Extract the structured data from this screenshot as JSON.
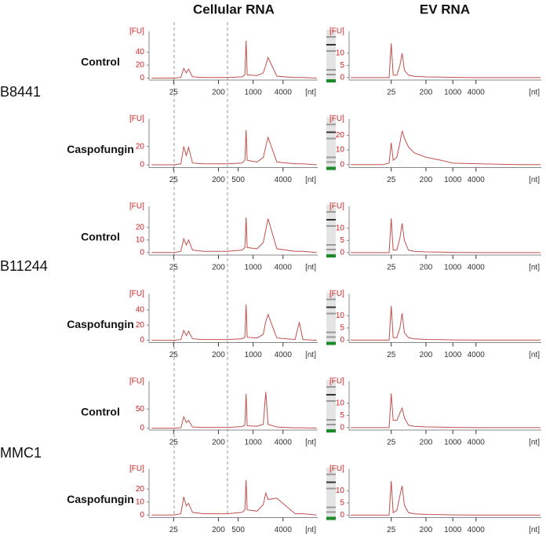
{
  "columns": [
    "Cellular RNA",
    "EV RNA"
  ],
  "strains": [
    "B8441",
    "B11244",
    "MMC1"
  ],
  "conditions": [
    "Control",
    "Caspofungin",
    "Control",
    "Caspofungin",
    "Control",
    "Caspofungin"
  ],
  "chart_data": [
    {
      "type": "line",
      "ylabel": "[FU]",
      "xlabel": "[nt]",
      "xscale": "log",
      "color": "#c0504d",
      "x": [
        9,
        25,
        35,
        40,
        45,
        50,
        60,
        100,
        300,
        600,
        680,
        720,
        760,
        1200,
        1600,
        1800,
        2000,
        3000,
        7000,
        8500,
        10000,
        19000
      ],
      "values": [
        0,
        0,
        1,
        15,
        8,
        14,
        2,
        1,
        1,
        2,
        5,
        58,
        5,
        4,
        8,
        20,
        32,
        3,
        1,
        1,
        1,
        0
      ],
      "xlim": [
        8,
        20000
      ],
      "ylim": [
        -3,
        65
      ],
      "xticks": [
        25,
        200,
        1000,
        4000
      ],
      "yticks": [
        0,
        20,
        40
      ]
    },
    {
      "type": "line",
      "ylabel": "[FU]",
      "xlabel": "[nt]",
      "xscale": "log",
      "color": "#c0504d",
      "x": [
        9,
        25,
        35,
        40,
        45,
        50,
        60,
        100,
        300,
        600,
        680,
        720,
        760,
        1200,
        1600,
        1800,
        2000,
        3000,
        7000,
        8500,
        10000,
        19000
      ],
      "values": [
        0,
        0,
        1,
        20,
        10,
        19,
        2,
        1,
        1,
        2,
        5,
        38,
        5,
        3,
        8,
        20,
        30,
        3,
        1,
        1,
        1,
        0
      ],
      "xlim": [
        8,
        20000
      ],
      "ylim": [
        -3,
        45
      ],
      "xticks": [
        25,
        200,
        500,
        4000
      ],
      "yticks": [
        0,
        20
      ]
    },
    {
      "type": "line",
      "ylabel": "[FU]",
      "xlabel": "[nt]",
      "xscale": "log",
      "color": "#c0504d",
      "x": [
        9,
        25,
        35,
        40,
        45,
        50,
        60,
        100,
        300,
        600,
        680,
        720,
        760,
        1200,
        1600,
        1800,
        2000,
        3000,
        7000,
        8500,
        10000,
        19000
      ],
      "values": [
        0,
        0,
        1,
        11,
        6,
        10,
        2,
        1,
        1,
        2,
        4,
        28,
        4,
        3,
        8,
        18,
        27,
        3,
        1,
        1,
        1,
        0
      ],
      "xlim": [
        8,
        20000
      ],
      "ylim": [
        -2,
        33
      ],
      "xticks": [
        25,
        200,
        1000,
        4000
      ],
      "yticks": [
        0,
        10,
        20
      ]
    },
    {
      "type": "line",
      "ylabel": "[FU]",
      "xlabel": "[nt]",
      "xscale": "log",
      "color": "#c0504d",
      "x": [
        9,
        25,
        35,
        40,
        45,
        50,
        60,
        100,
        300,
        600,
        680,
        720,
        760,
        1200,
        1600,
        1800,
        2000,
        3000,
        7000,
        8500,
        10000,
        19000
      ],
      "values": [
        0,
        0,
        1,
        13,
        6,
        12,
        2,
        1,
        1,
        2,
        4,
        47,
        4,
        3,
        8,
        25,
        34,
        3,
        1,
        24,
        1,
        0
      ],
      "xlim": [
        8,
        20000
      ],
      "ylim": [
        -3,
        55
      ],
      "xticks": [
        25,
        200,
        1000,
        4000
      ],
      "yticks": [
        0,
        20,
        40
      ]
    },
    {
      "type": "line",
      "ylabel": "[FU]",
      "xlabel": "[nt]",
      "xscale": "log",
      "color": "#c0504d",
      "x": [
        9,
        25,
        35,
        40,
        45,
        50,
        60,
        100,
        300,
        600,
        680,
        720,
        760,
        1200,
        1600,
        1800,
        2000,
        3000,
        7000,
        8500,
        10000,
        19000
      ],
      "values": [
        0,
        0,
        1,
        30,
        15,
        20,
        3,
        2,
        2,
        4,
        8,
        90,
        6,
        5,
        10,
        95,
        10,
        3,
        1,
        1,
        1,
        0
      ],
      "xlim": [
        8,
        20000
      ],
      "ylim": [
        -5,
        110
      ],
      "xticks": [
        25,
        200,
        1000,
        4000
      ],
      "yticks": [
        0,
        50
      ]
    },
    {
      "type": "line",
      "ylabel": "[FU]",
      "xlabel": "[nt]",
      "xscale": "log",
      "color": "#c0504d",
      "x": [
        9,
        25,
        35,
        40,
        45,
        50,
        60,
        100,
        300,
        600,
        680,
        720,
        760,
        1200,
        1600,
        1800,
        2000,
        3000,
        7000,
        8500,
        10000,
        19000
      ],
      "values": [
        0,
        0,
        1,
        14,
        7,
        9,
        2,
        1,
        1,
        2,
        4,
        27,
        4,
        3,
        8,
        17,
        12,
        13,
        1,
        1,
        1,
        0
      ],
      "xlim": [
        8,
        20000
      ],
      "ylim": [
        -2,
        32
      ],
      "xticks": [
        25,
        200,
        500,
        4000
      ],
      "yticks": [
        0,
        10,
        20
      ]
    },
    {
      "type": "line",
      "ylabel": "[FU]",
      "xlabel": "[nt]",
      "xscale": "log",
      "color": "#c0504d",
      "x": [
        2.2,
        15,
        22,
        25,
        28,
        35,
        42,
        48,
        55,
        70,
        100,
        200,
        500,
        1000,
        5000,
        50000,
        190000
      ],
      "values": [
        0,
        0,
        0,
        14,
        1,
        1,
        5,
        10,
        3,
        1,
        0.5,
        0.3,
        0.2,
        0.1,
        0,
        0,
        0
      ],
      "xlim": [
        2,
        200000
      ],
      "ylim": [
        -1,
        17
      ],
      "xticks": [
        25,
        200,
        1000,
        4000
      ],
      "yticks": [
        0,
        5,
        10
      ]
    },
    {
      "type": "line",
      "ylabel": "[FU]",
      "xlabel": "[nt]",
      "xscale": "log",
      "color": "#c0504d",
      "x": [
        2.2,
        15,
        22,
        25,
        28,
        35,
        42,
        48,
        55,
        70,
        100,
        200,
        500,
        1000,
        5000,
        50000,
        190000
      ],
      "values": [
        0,
        0,
        1,
        15,
        3,
        5,
        15,
        23,
        18,
        12,
        8,
        5,
        3,
        1,
        0.5,
        0,
        0
      ],
      "xlim": [
        2,
        200000
      ],
      "ylim": [
        -2,
        28
      ],
      "xticks": [
        25,
        200,
        1000,
        4000
      ],
      "yticks": [
        0,
        10,
        20
      ]
    },
    {
      "type": "line",
      "ylabel": "[FU]",
      "xlabel": "[nt]",
      "xscale": "log",
      "color": "#c0504d",
      "x": [
        2.2,
        15,
        22,
        25,
        28,
        35,
        42,
        48,
        55,
        70,
        100,
        200,
        500,
        1000,
        5000,
        50000,
        190000
      ],
      "values": [
        0,
        0,
        0,
        14,
        1,
        1,
        6,
        12,
        5,
        1,
        0.5,
        0.3,
        0.2,
        0.1,
        0,
        0,
        0
      ],
      "xlim": [
        2,
        200000
      ],
      "ylim": [
        -1,
        17
      ],
      "xticks": [
        25,
        200,
        1000,
        4000
      ],
      "yticks": [
        0,
        5,
        10
      ]
    },
    {
      "type": "line",
      "ylabel": "[FU]",
      "xlabel": "[nt]",
      "xscale": "log",
      "color": "#c0504d",
      "x": [
        2.2,
        15,
        22,
        25,
        28,
        35,
        42,
        48,
        55,
        70,
        100,
        200,
        500,
        1000,
        5000,
        50000,
        190000
      ],
      "values": [
        0,
        0,
        0,
        14,
        1,
        1,
        5,
        11,
        3,
        1,
        0.5,
        0.3,
        0.2,
        0.1,
        0,
        0,
        0
      ],
      "xlim": [
        2,
        200000
      ],
      "ylim": [
        -1,
        17
      ],
      "xticks": [
        25,
        200,
        1000,
        4000
      ],
      "yticks": [
        0,
        5,
        10
      ]
    },
    {
      "type": "line",
      "ylabel": "[FU]",
      "xlabel": "[nt]",
      "xscale": "log",
      "color": "#c0504d",
      "x": [
        2.2,
        15,
        22,
        25,
        28,
        35,
        42,
        48,
        55,
        70,
        100,
        200,
        500,
        1000,
        5000,
        50000,
        190000
      ],
      "values": [
        0,
        0,
        0,
        14,
        3,
        3,
        6,
        8,
        4,
        1,
        0.5,
        0.3,
        0.2,
        0.1,
        0,
        0,
        0
      ],
      "xlim": [
        2,
        200000
      ],
      "ylim": [
        -1,
        17
      ],
      "xticks": [
        25,
        200,
        1000,
        4000
      ],
      "yticks": [
        0,
        5,
        10
      ]
    },
    {
      "type": "line",
      "ylabel": "[FU]",
      "xlabel": "[nt]",
      "xscale": "log",
      "color": "#c0504d",
      "x": [
        2.2,
        15,
        22,
        25,
        28,
        35,
        42,
        48,
        55,
        70,
        100,
        200,
        500,
        1000,
        5000,
        50000,
        190000
      ],
      "values": [
        0,
        0,
        0,
        14,
        1,
        2,
        8,
        12,
        4,
        1,
        0.5,
        0.3,
        0.2,
        0.1,
        0,
        0,
        0
      ],
      "xlim": [
        2,
        200000
      ],
      "ylim": [
        -1,
        17
      ],
      "xticks": [
        25,
        200,
        1000,
        4000
      ],
      "yticks": [
        0,
        5,
        10
      ]
    }
  ]
}
